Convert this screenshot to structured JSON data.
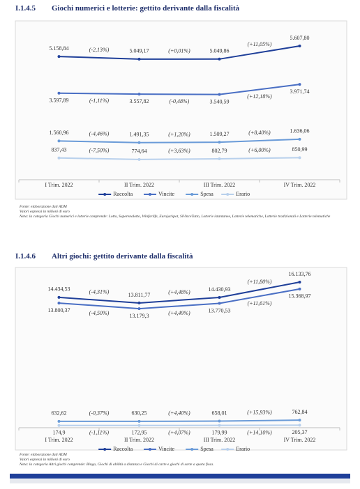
{
  "chart_data": [
    {
      "type": "line",
      "number": "I.1.4.5",
      "title": "Giochi numerici e lotterie: gettito derivante dalla fiscalità",
      "categories": [
        "I Trim. 2022",
        "II Trim. 2022",
        "III Trim. 2022",
        "IV Trim. 2022"
      ],
      "series": [
        {
          "name": "Raccolta",
          "color": "#1f3f99",
          "values": [
            5158.84,
            5049.17,
            5049.86,
            5607.8
          ],
          "value_labels": [
            "5.158,84",
            "5.049,17",
            "5.049,86",
            "5.607,80"
          ],
          "change_labels": [
            "(-2,13%)",
            "(+0,01%)",
            "(+11,05%)"
          ]
        },
        {
          "name": "Vincite",
          "color": "#4a6fc4",
          "values": [
            3597.89,
            3557.82,
            3540.59,
            3971.74
          ],
          "value_labels": [
            "3.597,89",
            "3.557,82",
            "3.540,59",
            "3.971,74"
          ],
          "change_labels": [
            "(-1,11%)",
            "(-0,48%)",
            "(+12,18%)"
          ]
        },
        {
          "name": "Spesa",
          "color": "#6a9bd8",
          "values": [
            1560.96,
            1491.35,
            1509.27,
            1636.06
          ],
          "value_labels": [
            "1.560,96",
            "1.491,35",
            "1.509,27",
            "1.636,06"
          ],
          "change_labels": [
            "(-4,46%)",
            "(+1,20%)",
            "(+8,40%)"
          ]
        },
        {
          "name": "Erario",
          "color": "#b8d0ec",
          "values": [
            837.43,
            774.64,
            802.79,
            850.99
          ],
          "value_labels": [
            "837,43",
            "774,64",
            "802,79",
            "850,99"
          ],
          "change_labels": [
            "(-7,50%)",
            "(+3,63%)",
            "(+6,00%)"
          ]
        }
      ],
      "source": "Fonte: elaborazione dati ADM",
      "units": "Valori espressi in milioni di euro",
      "note": "Nota: la categoria Giochi numerici e lotterie comprende: Lotto, Superenalotto, Winforlife, Eurojackpot, SiVinceTutto, Lotterie istantanee, Lotterie telematiche, Lotterie tradizionali e Lotterie telematiche"
    },
    {
      "type": "line",
      "number": "I.1.4.6",
      "title": "Altri giochi: gettito derivante dalla fiscalità",
      "categories": [
        "I Trim. 2022",
        "II Trim. 2022",
        "III Trim. 2022",
        "IV Trim. 2022"
      ],
      "series": [
        {
          "name": "Raccolta",
          "color": "#1f3f99",
          "values": [
            14434.53,
            13811.77,
            14430.93,
            16133.76
          ],
          "value_labels": [
            "14.434,53",
            "13.811,77",
            "14.430,93",
            "16.133,76"
          ],
          "change_labels": [
            "(-4,31%)",
            "(+4,48%)",
            "(+11,80%)"
          ]
        },
        {
          "name": "Vincite",
          "color": "#4a6fc4",
          "values": [
            13800.37,
            13179.3,
            13770.53,
            15368.97
          ],
          "value_labels": [
            "13.800,37",
            "13.179,3",
            "13.770,53",
            "15.368,97"
          ],
          "change_labels": [
            "(-4,50%)",
            "(+4,49%)",
            "(+11,61%)"
          ]
        },
        {
          "name": "Spesa",
          "color": "#6a9bd8",
          "values": [
            632.62,
            630.25,
            658.01,
            762.84
          ],
          "value_labels": [
            "632,62",
            "630,25",
            "658,01",
            "762,84"
          ],
          "change_labels": [
            "(-0,37%)",
            "(+4,40%)",
            "(+15,93%)"
          ]
        },
        {
          "name": "Erario",
          "color": "#b8d0ec",
          "values": [
            174.9,
            172.95,
            179.99,
            205.37
          ],
          "value_labels": [
            "174,9",
            "172,95",
            "179,99",
            "205,37"
          ],
          "change_labels": [
            "(-1,11%)",
            "(+4,07%)",
            "(+14,10%)"
          ]
        }
      ],
      "source": "Fonte: elaborazione dati ADM",
      "units": "Valori espressi in milioni di euro",
      "note": "Nota: la categoria Altri giochi comprende: Bingo, Giochi di abilità a distanza e Giochi di carte e giochi di sorte a quota fissa."
    }
  ]
}
